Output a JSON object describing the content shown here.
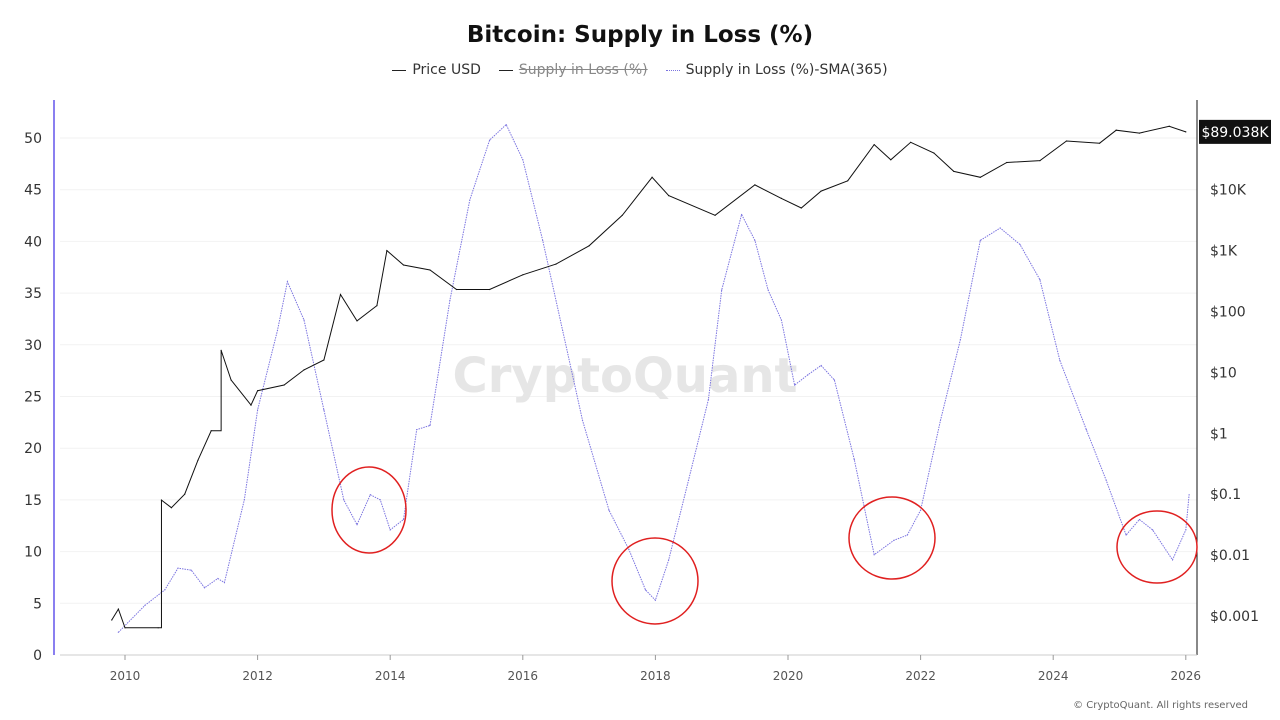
{
  "chart_data": {
    "type": "line",
    "title": "Bitcoin: Supply in Loss (%)",
    "legend": [
      {
        "name": "Price USD",
        "color": "#222222",
        "style": "solid",
        "hidden": false
      },
      {
        "name": "Supply in Loss (%)",
        "color": "#222222",
        "style": "solid",
        "hidden": true
      },
      {
        "name": "Supply in Loss (%)-SMA(365)",
        "color": "#7b74e0",
        "style": "dotted",
        "hidden": false
      }
    ],
    "legend_position": "top-center",
    "x_ticks": [
      "2010",
      "2012",
      "2014",
      "2016",
      "2018",
      "2020",
      "2022",
      "2024",
      "2026"
    ],
    "xlim": [
      2009,
      2026.2
    ],
    "y_left": {
      "ticks": [
        "0",
        "5",
        "10",
        "15",
        "20",
        "25",
        "30",
        "35",
        "40",
        "45",
        "50"
      ],
      "ylim": [
        0,
        53.7
      ]
    },
    "y_right": {
      "scale": "log",
      "ticks": [
        "$0.001",
        "$0.01",
        "$0.1",
        "$1",
        "$10",
        "$100",
        "$1K",
        "$10K"
      ],
      "tick_values": [
        0.001,
        0.01,
        0.1,
        1,
        10,
        100,
        1000,
        10000
      ]
    },
    "last_price_label": "$89.038K",
    "grid": true,
    "watermark": "CryptoQuant",
    "annotations": "red circles at local minima of SMA near 2013.7, 2018.0, 2021.6, 2025.6",
    "series": [
      {
        "name": "Supply in Loss (%)-SMA(365)",
        "axis": "left",
        "x": [
          2009.9,
          2010.3,
          2010.6,
          2010.8,
          2011.0,
          2011.2,
          2011.4,
          2011.5,
          2011.8,
          2012.0,
          2012.3,
          2012.45,
          2012.7,
          2013.0,
          2013.3,
          2013.5,
          2013.7,
          2013.85,
          2014.0,
          2014.2,
          2014.4,
          2014.6,
          2014.9,
          2015.2,
          2015.5,
          2015.75,
          2016.0,
          2016.3,
          2016.6,
          2016.9,
          2017.3,
          2017.6,
          2017.85,
          2018.0,
          2018.2,
          2018.5,
          2018.8,
          2019.0,
          2019.3,
          2019.5,
          2019.7,
          2019.9,
          2020.1,
          2020.3,
          2020.5,
          2020.7,
          2021.0,
          2021.3,
          2021.6,
          2021.8,
          2022.0,
          2022.3,
          2022.6,
          2022.9,
          2023.2,
          2023.5,
          2023.8,
          2024.1,
          2024.5,
          2024.8,
          2025.1,
          2025.3,
          2025.5,
          2025.8,
          2026.0,
          2026.05
        ],
        "y": [
          2.2,
          4.8,
          6.3,
          8.4,
          8.2,
          6.5,
          7.4,
          7.0,
          15,
          23.7,
          31.4,
          36.1,
          32.4,
          23.7,
          15,
          12.6,
          15.5,
          15,
          12.1,
          13.1,
          21.8,
          22.2,
          34.3,
          44,
          49.8,
          51.3,
          47.9,
          40.1,
          31.4,
          22.7,
          14,
          10.2,
          6.3,
          5.3,
          9.2,
          16.9,
          24.7,
          35.3,
          42.6,
          40.1,
          35.3,
          32.4,
          26.1,
          27.1,
          28,
          26.6,
          18.9,
          9.7,
          11.1,
          11.6,
          14,
          22.7,
          30.5,
          40.1,
          41.3,
          39.7,
          36.3,
          28.5,
          21.8,
          16.9,
          11.6,
          13.1,
          12.1,
          9.2,
          12.1,
          15.5
        ]
      },
      {
        "name": "Price USD",
        "axis": "right",
        "x": [
          2009.8,
          2009.9,
          2010.0,
          2010.5,
          2010.55,
          2010.7,
          2010.9,
          2011.1,
          2011.3,
          2011.45,
          2011.6,
          2011.9,
          2012.0,
          2012.4,
          2012.7,
          2013.0,
          2013.25,
          2013.5,
          2013.8,
          2013.95,
          2014.2,
          2014.6,
          2015.0,
          2015.5,
          2016.0,
          2016.5,
          2017.0,
          2017.5,
          2017.95,
          2018.2,
          2018.9,
          2019.5,
          2019.9,
          2020.2,
          2020.5,
          2020.9,
          2021.3,
          2021.55,
          2021.85,
          2022.2,
          2022.5,
          2022.9,
          2023.3,
          2023.8,
          2024.2,
          2024.7,
          2024.95,
          2025.3,
          2025.75,
          2026.0
        ],
        "y": [
          0.00086,
          0.0013,
          0.00064,
          0.00064,
          0.08,
          0.06,
          0.1,
          0.36,
          1.1,
          23,
          7.5,
          2.9,
          5,
          6.2,
          11,
          16,
          190,
          70,
          125,
          1000,
          580,
          480,
          230,
          230,
          400,
          600,
          1200,
          3800,
          16000,
          8000,
          3800,
          12000,
          7200,
          5000,
          9500,
          14000,
          55000,
          31000,
          60000,
          40000,
          20000,
          16000,
          28000,
          30000,
          63000,
          58000,
          95000,
          85000,
          110000,
          89038
        ]
      }
    ]
  },
  "footer": {
    "copyright": "© CryptoQuant. All rights reserved"
  }
}
